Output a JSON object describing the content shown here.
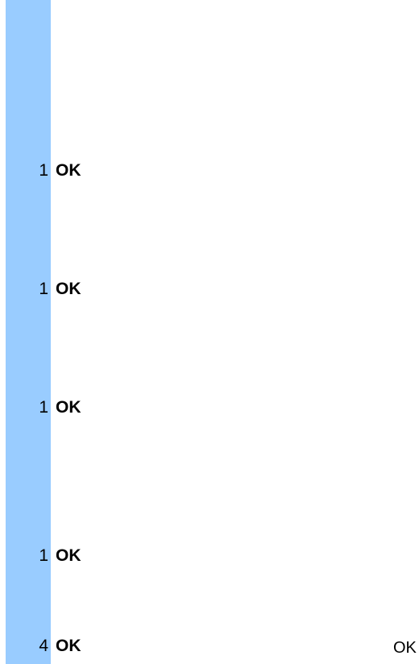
{
  "accent_color": "#99ccff",
  "rows": [
    {
      "count": "1",
      "status": "OK"
    },
    {
      "count": "1",
      "status": "OK"
    },
    {
      "count": "1",
      "status": "OK"
    },
    {
      "count": "1",
      "status": "OK"
    },
    {
      "count": "4",
      "status": "OK"
    }
  ],
  "footer": {
    "status": "OK"
  }
}
